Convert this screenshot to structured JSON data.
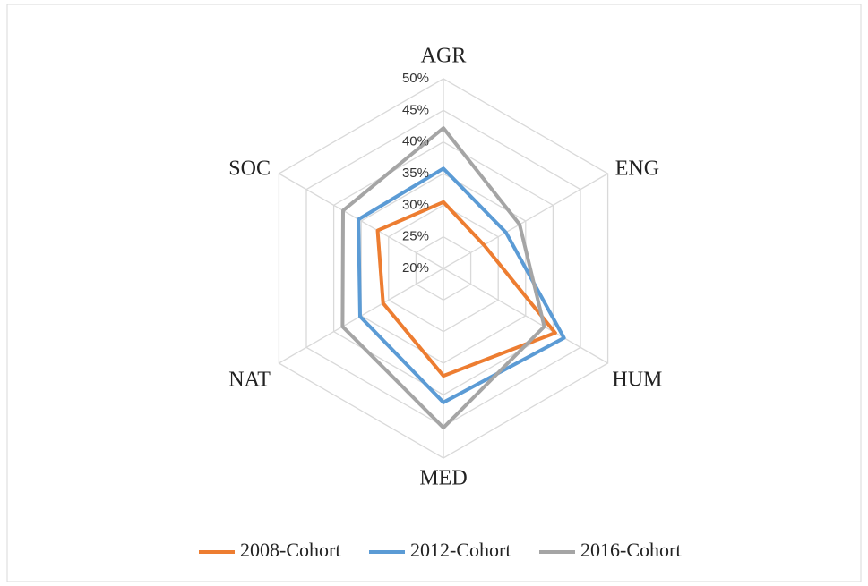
{
  "chart_data": {
    "type": "radar",
    "categories": [
      "AGR",
      "ENG",
      "HUM",
      "MED",
      "NAT",
      "SOC"
    ],
    "series": [
      {
        "name": "2008-Cohort",
        "color": "#ed7d31",
        "values": [
          30.5,
          27.4,
          40.4,
          37,
          31,
          32
        ]
      },
      {
        "name": "2012-Cohort",
        "color": "#5b9bd5",
        "values": [
          35.8,
          31.4,
          42,
          41.2,
          35.2,
          35.5
        ]
      },
      {
        "name": "2016-Cohort",
        "color": "#a5a5a5",
        "values": [
          42.2,
          33.9,
          38.4,
          45.2,
          38.4,
          38.3
        ]
      }
    ],
    "ylim": [
      20,
      50
    ],
    "yticks": [
      {
        "value": 20,
        "label": "20%"
      },
      {
        "value": 25,
        "label": "25%"
      },
      {
        "value": 30,
        "label": "30%"
      },
      {
        "value": 35,
        "label": "35%"
      },
      {
        "value": 40,
        "label": "40%"
      },
      {
        "value": 45,
        "label": "45%"
      },
      {
        "value": 50,
        "label": "50%"
      }
    ],
    "grid": true,
    "legend": "bottom"
  }
}
